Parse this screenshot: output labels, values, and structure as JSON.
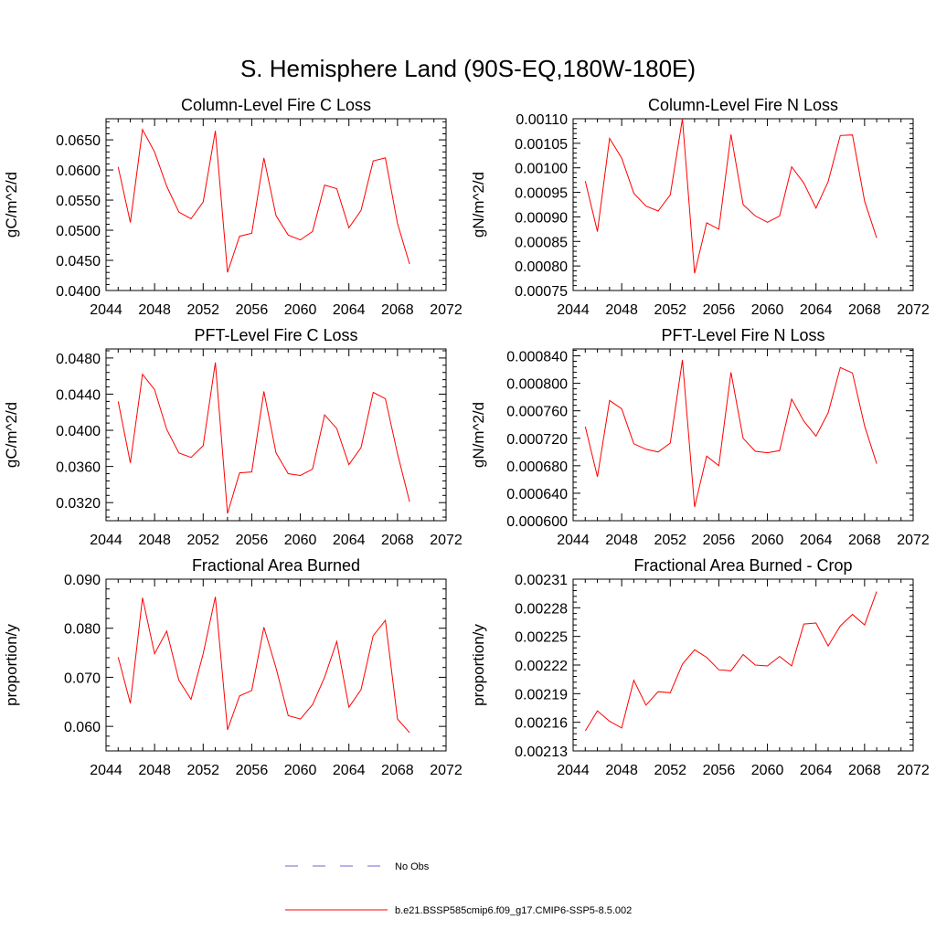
{
  "page_title": "S. Hemisphere Land (90S-EQ,180W-180E)",
  "legend": {
    "obs_label": "No Obs",
    "obs_color": "#6a6acd",
    "model_label": "b.e21.BSSP585cmip6.f09_g17.CMIP6-SSP5-8.5.002",
    "model_color": "#ff0000"
  },
  "chart_data": [
    {
      "type": "line",
      "title": "Column-Level Fire C Loss",
      "xlabel": "",
      "ylabel": "gC/m^2/d",
      "xlim": [
        2044,
        2072
      ],
      "ylim": [
        0.04,
        0.0685
      ],
      "xticks": [
        "2044",
        "2048",
        "2052",
        "2056",
        "2060",
        "2064",
        "2068",
        "2072"
      ],
      "yticks": [
        "0.0400",
        "0.0450",
        "0.0500",
        "0.0550",
        "0.0600",
        "0.0650"
      ],
      "series": [
        {
          "x": [
            2045,
            2046,
            2047,
            2048,
            2049,
            2050,
            2051,
            2052,
            2053,
            2054,
            2055,
            2056,
            2057,
            2058,
            2059,
            2060,
            2061,
            2062,
            2063,
            2064,
            2065,
            2066,
            2067,
            2068,
            2069
          ],
          "values": [
            0.0605,
            0.0513,
            0.0667,
            0.063,
            0.0573,
            0.053,
            0.0519,
            0.0547,
            0.0665,
            0.043,
            0.049,
            0.0495,
            0.062,
            0.0524,
            0.0492,
            0.0484,
            0.0498,
            0.0575,
            0.0569,
            0.0504,
            0.0533,
            0.0615,
            0.062,
            0.0511,
            0.0444
          ]
        }
      ]
    },
    {
      "type": "line",
      "title": "Column-Level Fire N Loss",
      "xlabel": "",
      "ylabel": "gN/m^2/d",
      "xlim": [
        2044,
        2072
      ],
      "ylim": [
        0.00075,
        0.0011
      ],
      "xticks": [
        "2044",
        "2048",
        "2052",
        "2056",
        "2060",
        "2064",
        "2068",
        "2072"
      ],
      "yticks": [
        "0.00075",
        "0.00080",
        "0.00085",
        "0.00090",
        "0.00095",
        "0.00100",
        "0.00105",
        "0.00110"
      ],
      "series": [
        {
          "x": [
            2045,
            2046,
            2047,
            2048,
            2049,
            2050,
            2051,
            2052,
            2053,
            2054,
            2055,
            2056,
            2057,
            2058,
            2059,
            2060,
            2061,
            2062,
            2063,
            2064,
            2065,
            2066,
            2067,
            2068,
            2069
          ],
          "values": [
            0.000973,
            0.00087,
            0.00106,
            0.00102,
            0.000948,
            0.000922,
            0.000912,
            0.000945,
            0.0011,
            0.000785,
            0.000888,
            0.000875,
            0.001068,
            0.000925,
            0.000902,
            0.000889,
            0.000902,
            0.001002,
            0.000969,
            0.000918,
            0.000972,
            0.001066,
            0.001067,
            0.000932,
            0.000857
          ]
        }
      ]
    },
    {
      "type": "line",
      "title": "PFT-Level Fire C Loss",
      "xlabel": "",
      "ylabel": "gC/m^2/d",
      "xlim": [
        2044,
        2072
      ],
      "ylim": [
        0.03,
        0.049
      ],
      "xticks": [
        "2044",
        "2048",
        "2052",
        "2056",
        "2060",
        "2064",
        "2068",
        "2072"
      ],
      "yticks": [
        "0.0320",
        "0.0360",
        "0.0400",
        "0.0440",
        "0.0480"
      ],
      "series": [
        {
          "x": [
            2045,
            2046,
            2047,
            2048,
            2049,
            2050,
            2051,
            2052,
            2053,
            2054,
            2055,
            2056,
            2057,
            2058,
            2059,
            2060,
            2061,
            2062,
            2063,
            2064,
            2065,
            2066,
            2067,
            2068,
            2069
          ],
          "values": [
            0.0432,
            0.0364,
            0.0462,
            0.0445,
            0.0401,
            0.0375,
            0.037,
            0.0383,
            0.0475,
            0.0308,
            0.0353,
            0.0354,
            0.0443,
            0.0375,
            0.0352,
            0.035,
            0.0357,
            0.0417,
            0.0402,
            0.0362,
            0.0381,
            0.0442,
            0.0435,
            0.0374,
            0.0321
          ]
        }
      ]
    },
    {
      "type": "line",
      "title": "PFT-Level Fire N Loss",
      "xlabel": "",
      "ylabel": "gN/m^2/d",
      "xlim": [
        2044,
        2072
      ],
      "ylim": [
        0.0006,
        0.00085
      ],
      "xticks": [
        "2044",
        "2048",
        "2052",
        "2056",
        "2060",
        "2064",
        "2068",
        "2072"
      ],
      "yticks": [
        "0.000600",
        "0.000640",
        "0.000680",
        "0.000720",
        "0.000760",
        "0.000800",
        "0.000840"
      ],
      "series": [
        {
          "x": [
            2045,
            2046,
            2047,
            2048,
            2049,
            2050,
            2051,
            2052,
            2053,
            2054,
            2055,
            2056,
            2057,
            2058,
            2059,
            2060,
            2061,
            2062,
            2063,
            2064,
            2065,
            2066,
            2067,
            2068,
            2069
          ],
          "values": [
            0.000737,
            0.000664,
            0.000775,
            0.000763,
            0.000712,
            0.000704,
            0.0007,
            0.000713,
            0.000834,
            0.00062,
            0.000694,
            0.00068,
            0.000816,
            0.00072,
            0.000701,
            0.000699,
            0.000702,
            0.000777,
            0.000745,
            0.000723,
            0.000757,
            0.000823,
            0.000815,
            0.000738,
            0.000683
          ]
        }
      ]
    },
    {
      "type": "line",
      "title": "Fractional Area Burned",
      "xlabel": "",
      "ylabel": "proportion/y",
      "xlim": [
        2044,
        2072
      ],
      "ylim": [
        0.055,
        0.09
      ],
      "xticks": [
        "2044",
        "2048",
        "2052",
        "2056",
        "2060",
        "2064",
        "2068",
        "2072"
      ],
      "yticks": [
        "0.060",
        "0.070",
        "0.080",
        "0.090"
      ],
      "series": [
        {
          "x": [
            2045,
            2046,
            2047,
            2048,
            2049,
            2050,
            2051,
            2052,
            2053,
            2054,
            2055,
            2056,
            2057,
            2058,
            2059,
            2060,
            2061,
            2062,
            2063,
            2064,
            2065,
            2066,
            2067,
            2068,
            2069
          ],
          "values": [
            0.0741,
            0.0647,
            0.0862,
            0.0748,
            0.0794,
            0.0694,
            0.0655,
            0.0748,
            0.0864,
            0.0593,
            0.0662,
            0.0673,
            0.0802,
            0.0719,
            0.0622,
            0.0615,
            0.0644,
            0.07,
            0.0773,
            0.0639,
            0.0675,
            0.0785,
            0.0816,
            0.0615,
            0.0587
          ]
        }
      ]
    },
    {
      "type": "line",
      "title": "Fractional Area Burned - Crop",
      "xlabel": "",
      "ylabel": "proportion/y",
      "xlim": [
        2044,
        2072
      ],
      "ylim": [
        0.00213,
        0.00231
      ],
      "xticks": [
        "2044",
        "2048",
        "2052",
        "2056",
        "2060",
        "2064",
        "2068",
        "2072"
      ],
      "yticks": [
        "0.00213",
        "0.00216",
        "0.00219",
        "0.00222",
        "0.00225",
        "0.00228",
        "0.00231"
      ],
      "series": [
        {
          "x": [
            2045,
            2046,
            2047,
            2048,
            2049,
            2050,
            2051,
            2052,
            2053,
            2054,
            2055,
            2056,
            2057,
            2058,
            2059,
            2060,
            2061,
            2062,
            2063,
            2064,
            2065,
            2066,
            2067,
            2068,
            2069
          ],
          "values": [
            0.002151,
            0.002172,
            0.002161,
            0.002154,
            0.002204,
            0.002178,
            0.002192,
            0.002191,
            0.002221,
            0.002236,
            0.002228,
            0.002215,
            0.002214,
            0.002231,
            0.00222,
            0.002219,
            0.002229,
            0.002219,
            0.002263,
            0.002264,
            0.00224,
            0.002261,
            0.002273,
            0.002262,
            0.002297
          ]
        }
      ]
    }
  ]
}
